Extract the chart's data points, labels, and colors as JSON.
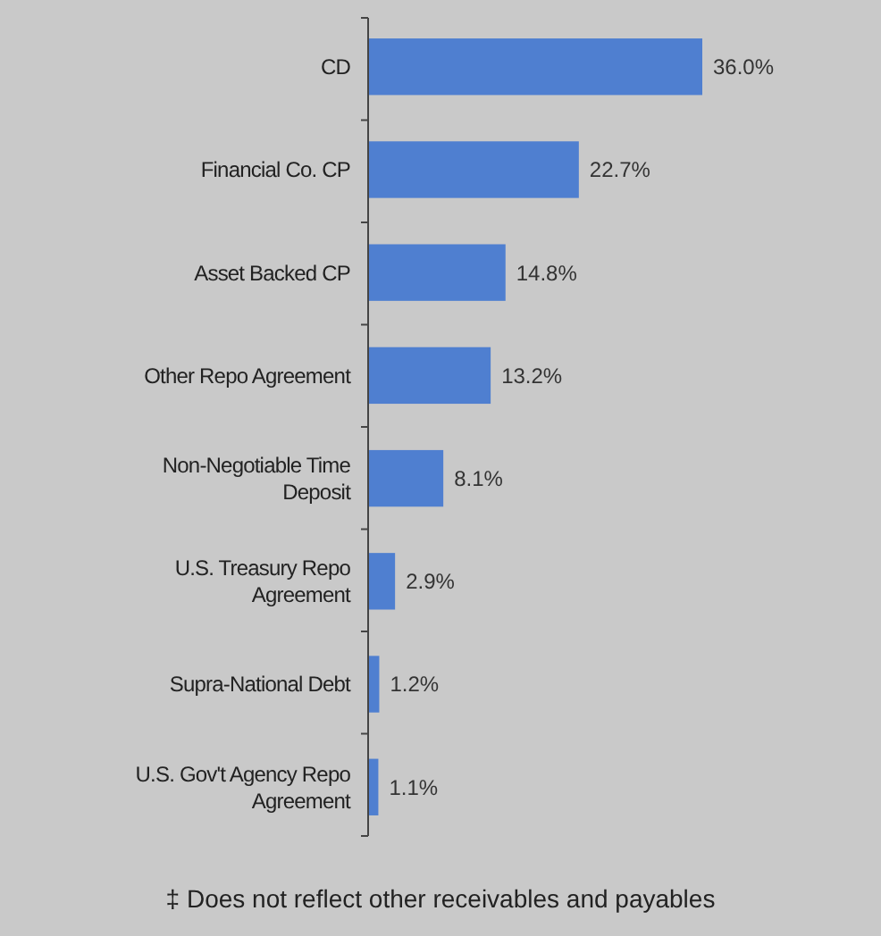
{
  "chart_data": {
    "type": "bar",
    "orientation": "horizontal",
    "categories": [
      "CD",
      "Financial Co. CP",
      "Asset Backed CP",
      "Other Repo Agreement",
      "Non-Negotiable Time Deposit",
      "U.S. Treasury Repo Agreement",
      "Supra-National Debt",
      "U.S. Gov't Agency Repo Agreement"
    ],
    "values": [
      36.0,
      22.7,
      14.8,
      13.2,
      8.1,
      2.9,
      1.2,
      1.1
    ],
    "value_labels": [
      "36.0%",
      "22.7%",
      "14.8%",
      "13.2%",
      "8.1%",
      "2.9%",
      "1.2%",
      "1.1%"
    ],
    "color": "#4f7fd0",
    "annotations": [
      "‡ Does not reflect other receivables and payables"
    ]
  }
}
